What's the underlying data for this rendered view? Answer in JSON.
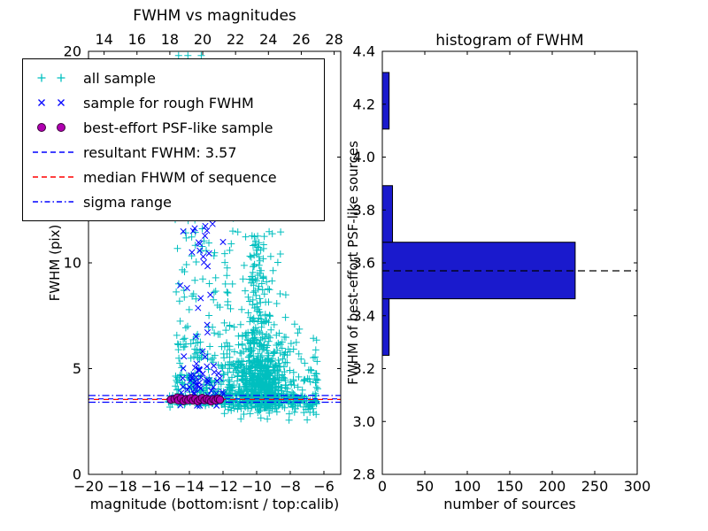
{
  "colors": {
    "all_sample": "#00bfbf",
    "rough_sample": "#0000ff",
    "psf_fill": "#b000b0",
    "psf_edge": "#3a003a",
    "resultant_line": "#0000ff",
    "median_line": "#ff0000",
    "sigma_line": "#0000ff",
    "hist_bar": "#1a1acd",
    "hist_edge": "#000000",
    "hist_line": "#000000"
  },
  "chart_data": [
    {
      "type": "scatter",
      "title": "FWHM vs magnitudes",
      "xlabel": "magnitude (bottom:isnt / top:calib)",
      "ylabel": "FWHM (pix)",
      "xlim": [
        -20,
        -5
      ],
      "x2lim": [
        13.05,
        28.4
      ],
      "ylim": [
        0,
        20
      ],
      "xticks_bottom": {
        "values": [
          -20,
          -18,
          -16,
          -14,
          -12,
          -10,
          -8,
          -6
        ],
        "labels": [
          "−20",
          "−18",
          "−16",
          "−14",
          "−12",
          "−10",
          "−8",
          "−6"
        ]
      },
      "xticks_top": {
        "values": [
          14,
          16,
          18,
          20,
          22,
          24,
          26,
          28
        ],
        "labels": [
          "14",
          "16",
          "18",
          "20",
          "22",
          "24",
          "26",
          "28"
        ]
      },
      "yticks": {
        "values": [
          0,
          5,
          10,
          15,
          20
        ],
        "labels": [
          "0",
          "5",
          "10",
          "15",
          "20"
        ]
      },
      "resultant_fwhm": 3.57,
      "series": [
        {
          "name": "all sample",
          "marker": "plus",
          "color": "#00bfbf",
          "seed": 42,
          "data_name": "all-sample-points",
          "clusters": [
            {
              "n": 500,
              "mag": {
                "dist": "gauss",
                "mean": -9.8,
                "sd": 0.85,
                "lo": -11.6,
                "hi": -7.4
              },
              "fwhm": {
                "dist": "loggauss",
                "base": 2.4,
                "mu": 0.75,
                "sigma": 0.5,
                "lo": 2.5,
                "hi": 13
              }
            },
            {
              "n": 240,
              "mag": {
                "dist": "uniform",
                "min": -15.25,
                "max": -6.35
              },
              "fwhm": {
                "dist": "gauss",
                "mean": 3.5,
                "sd": 0.17,
                "lo": 2.95,
                "hi": 4.1
              }
            },
            {
              "n": 200,
              "mag": {
                "dist": "uniform",
                "min": -14.9,
                "max": -11.6
              },
              "fwhm": {
                "dist": "loggauss",
                "base": 3.0,
                "mu": 0.9,
                "sigma": 0.9,
                "lo": 3.0,
                "hi": 19.8
              }
            },
            {
              "n": 100,
              "mag": {
                "dist": "uniform",
                "min": -14.3,
                "max": -8.2
              },
              "fwhm": {
                "dist": "uniform",
                "min": 10,
                "max": 19.8
              }
            },
            {
              "n": 220,
              "mag": {
                "dist": "uniform",
                "min": -12.2,
                "max": -6.35
              },
              "fwhm": {
                "dist": "loggauss",
                "base": 2.3,
                "mu": 0.6,
                "sigma": 0.6,
                "lo": 2.3,
                "hi": 9
              }
            },
            {
              "n": 130,
              "mag": {
                "dist": "gauss",
                "mean": -10.0,
                "sd": 0.35,
                "lo": -11.0,
                "hi": -9.0
              },
              "fwhm": {
                "dist": "uniform",
                "min": 3.0,
                "max": 11.5
              }
            }
          ]
        },
        {
          "name": "sample for rough FWHM",
          "marker": "x",
          "color": "#0000ff",
          "seed": 7,
          "data_name": "rough-fwhm-points",
          "clusters": [
            {
              "n": 55,
              "mag": {
                "dist": "gauss",
                "mean": -13.3,
                "sd": 0.7,
                "lo": -14.85,
                "hi": -11.95
              },
              "fwhm": {
                "dist": "gauss",
                "mean": 4.1,
                "sd": 0.55,
                "lo": 3.25,
                "hi": 5.6
              }
            },
            {
              "n": 30,
              "mag": {
                "dist": "gauss",
                "mean": -13.2,
                "sd": 0.6,
                "lo": -14.6,
                "hi": -12.0
              },
              "fwhm": {
                "dist": "uniform",
                "min": 4.5,
                "max": 12.2
              }
            }
          ]
        },
        {
          "name": "best-effort PSF-like sample",
          "marker": "circle",
          "color": "#b000b0",
          "edge": "#3a003a",
          "data_name": "psf-sample-points",
          "points": [
            [
              -15.1,
              3.53
            ],
            [
              -14.88,
              3.56
            ],
            [
              -14.72,
              3.63
            ],
            [
              -14.66,
              3.5
            ],
            [
              -14.5,
              3.59
            ],
            [
              -14.34,
              3.47
            ],
            [
              -14.2,
              3.55
            ],
            [
              -14.06,
              3.51
            ],
            [
              -13.92,
              3.6
            ],
            [
              -13.78,
              3.49
            ],
            [
              -13.64,
              3.57
            ],
            [
              -13.5,
              3.46
            ],
            [
              -13.37,
              3.54
            ],
            [
              -13.24,
              3.61
            ],
            [
              -13.1,
              3.5
            ],
            [
              -12.97,
              3.57
            ],
            [
              -12.84,
              3.52
            ],
            [
              -12.7,
              3.45
            ],
            [
              -12.57,
              3.55
            ],
            [
              -12.44,
              3.5
            ],
            [
              -12.3,
              3.58
            ],
            [
              -12.18,
              3.53
            ]
          ]
        }
      ],
      "lines": [
        {
          "label": "sigma range",
          "y": 3.41,
          "style": "dashdot",
          "color": "#0000ff",
          "dashoffset": 0,
          "data_name": "sigma-range-line-lower"
        },
        {
          "label": "sigma range",
          "y": 3.73,
          "style": "dashdot",
          "color": "#0000ff",
          "dashoffset": 0,
          "data_name": "sigma-range-line-upper"
        },
        {
          "label": "resultant FWHM: 3.57",
          "y": 3.57,
          "style": "dashed",
          "color": "#0000ff",
          "dashoffset": 0,
          "data_name": "resultant-fwhm-line"
        },
        {
          "label": "median FHWM of sequence",
          "y": 3.54,
          "style": "dashed",
          "color": "#ff0000",
          "dashoffset": 5,
          "data_name": "median-fwhm-line"
        }
      ],
      "legend": {
        "items": [
          {
            "label": "all sample"
          },
          {
            "label": "sample for rough FWHM"
          },
          {
            "label": "best-effort PSF-like sample"
          },
          {
            "label": "resultant FWHM: 3.57"
          },
          {
            "label": "median FHWM of sequence"
          },
          {
            "label": "sigma range"
          }
        ]
      }
    },
    {
      "type": "bar",
      "orientation": "horizontal",
      "title": "histogram of FWHM",
      "xlabel": "number of sources",
      "ylabel": "FWHM of best-effort PSF-like sources",
      "xlim": [
        0,
        300
      ],
      "ylim": [
        2.8,
        4.4
      ],
      "xticks": {
        "values": [
          0,
          50,
          100,
          150,
          200,
          250,
          300
        ],
        "labels": [
          "0",
          "50",
          "100",
          "150",
          "200",
          "250",
          "300"
        ]
      },
      "yticks": {
        "values": [
          2.8,
          3.0,
          3.2,
          3.4,
          3.6,
          3.8,
          4.0,
          4.2,
          4.4
        ],
        "labels": [
          "2.8",
          "3.0",
          "3.2",
          "3.4",
          "3.6",
          "3.8",
          "4.0",
          "4.2",
          "4.4"
        ]
      },
      "bars": [
        {
          "y0": 3.25,
          "y1": 3.464,
          "count": 8
        },
        {
          "y0": 3.464,
          "y1": 3.678,
          "count": 227
        },
        {
          "y0": 3.678,
          "y1": 3.892,
          "count": 12
        },
        {
          "y0": 3.892,
          "y1": 4.106,
          "count": 0
        },
        {
          "y0": 4.106,
          "y1": 4.32,
          "count": 8
        }
      ],
      "bar_color": "#1a1acd",
      "bar_edge": "#000000",
      "line": {
        "y": 3.57,
        "style": "dashed",
        "color": "#000000"
      }
    }
  ]
}
